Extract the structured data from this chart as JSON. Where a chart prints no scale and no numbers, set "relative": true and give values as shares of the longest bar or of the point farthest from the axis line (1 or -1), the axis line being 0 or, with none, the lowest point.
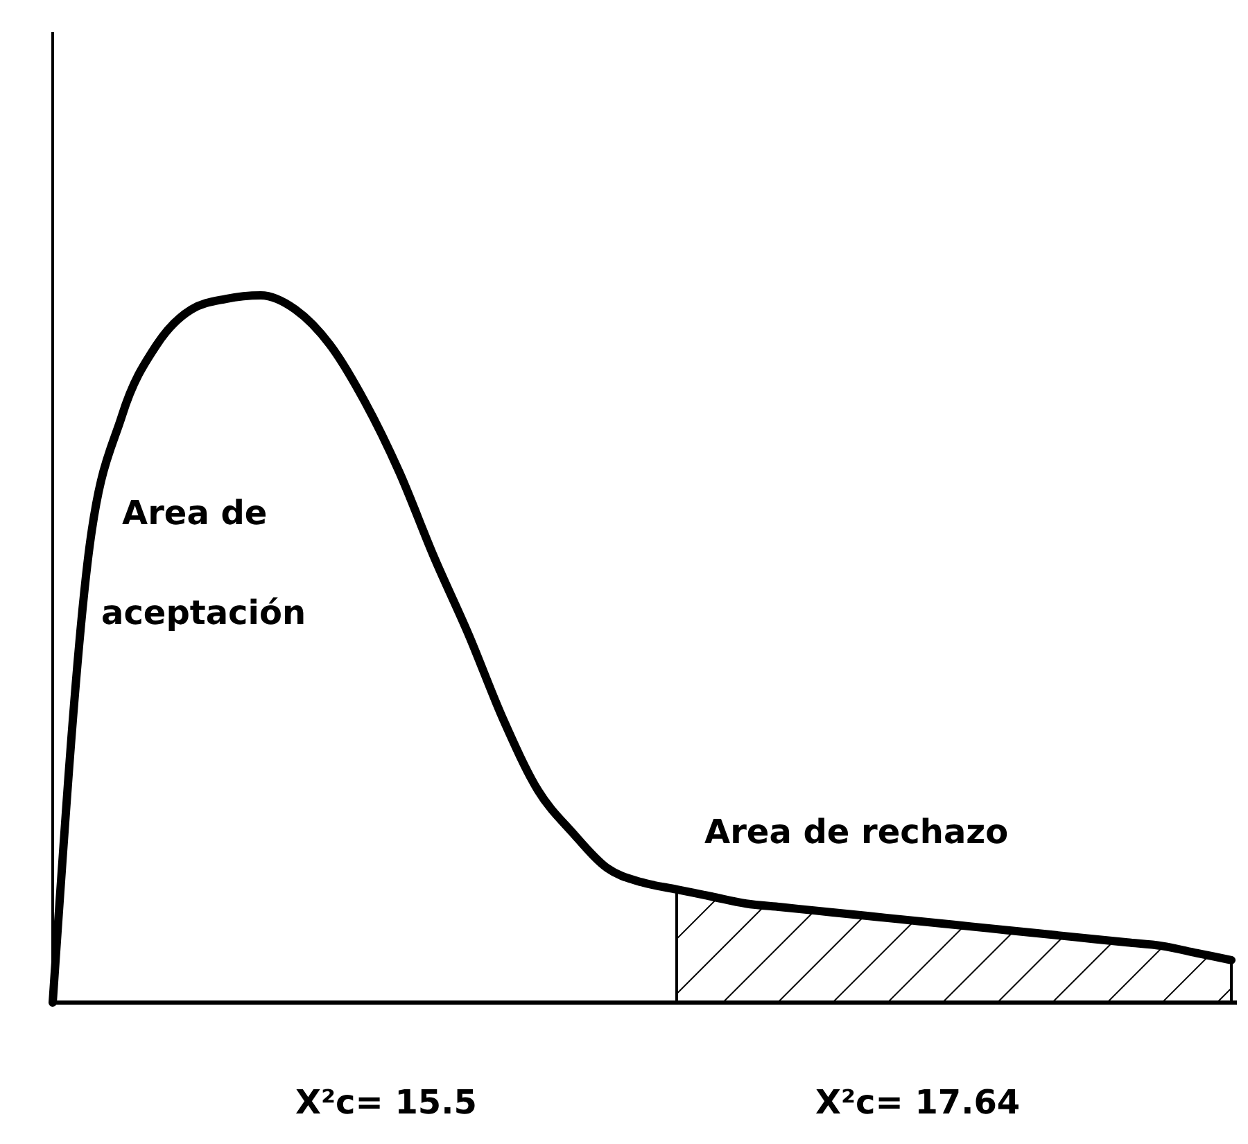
{
  "chart_data": {
    "type": "line",
    "relative": true,
    "line_style": "solid",
    "categories": [
      null,
      null,
      null,
      null,
      null,
      null,
      null,
      null,
      null,
      null,
      null,
      null,
      null,
      null,
      null,
      null,
      null,
      null,
      null,
      null,
      null,
      null,
      null,
      null,
      null,
      null,
      null,
      null,
      null,
      null,
      null,
      null,
      null,
      null,
      null
    ],
    "series": [
      {
        "color": "#000000",
        "values": [
          0,
          0.62,
          0.83,
          0.93,
          0.98,
          0.995,
          1,
          0.98,
          0.93,
          0.85,
          0.75,
          0.63,
          0.52,
          0.4,
          0.3,
          0.24,
          0.19,
          0.17,
          0.16,
          0.15,
          0.14,
          0.135,
          0.13,
          0.125,
          0.12,
          0.115,
          0.11,
          0.105,
          0.1,
          0.095,
          0.09,
          0.085,
          0.08,
          0.07,
          0.06
        ]
      },
      {
        "type": "area",
        "color": "#000000",
        "values": [
          null,
          null,
          null,
          null,
          null,
          null,
          null,
          null,
          null,
          null,
          null,
          null,
          null,
          null,
          null,
          null,
          null,
          null,
          0.16,
          0.15,
          0.14,
          0.135,
          0.13,
          0.125,
          0.12,
          0.115,
          0.11,
          0.105,
          0.1,
          0.095,
          0.09,
          0.085,
          0.08,
          0.07,
          0.06
        ]
      }
    ],
    "annotations": [
      "Area de aceptación",
      "Area de rechazo",
      "X²c= 15.5",
      "X²c= 17.64"
    ]
  }
}
